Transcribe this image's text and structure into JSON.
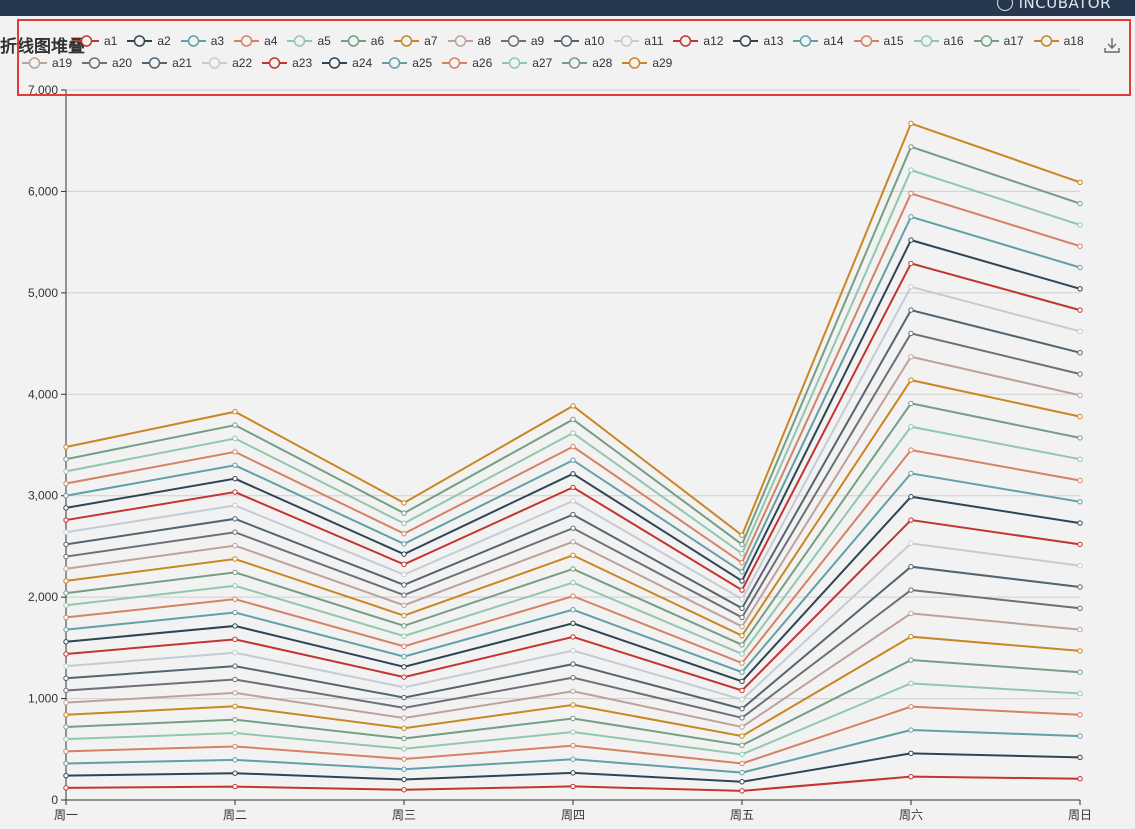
{
  "header": {
    "brand": "INCUBATOR"
  },
  "chart_data": {
    "type": "line",
    "title": "折线图堆叠",
    "stacked": true,
    "categories": [
      "周一",
      "周二",
      "周三",
      "周四",
      "周五",
      "周六",
      "周日"
    ],
    "ylim": [
      0,
      7000
    ],
    "yticks": [
      "0",
      "1,000",
      "2,000",
      "3,000",
      "4,000",
      "5,000",
      "6,000",
      "7,000"
    ],
    "legend_position": "top",
    "colors": [
      "#c23531",
      "#2f4554",
      "#61a0a8",
      "#d48265",
      "#91c7ae",
      "#749f83",
      "#ca8622",
      "#bda29a",
      "#6e7074",
      "#546570",
      "#c4ccd3"
    ],
    "series": [
      {
        "name": "a1",
        "values": [
          120,
          132,
          101,
          134,
          90,
          230,
          210
        ]
      },
      {
        "name": "a2",
        "values": [
          120,
          132,
          101,
          134,
          90,
          230,
          210
        ]
      },
      {
        "name": "a3",
        "values": [
          120,
          132,
          101,
          134,
          90,
          230,
          210
        ]
      },
      {
        "name": "a4",
        "values": [
          120,
          132,
          101,
          134,
          90,
          230,
          210
        ]
      },
      {
        "name": "a5",
        "values": [
          120,
          132,
          101,
          134,
          90,
          230,
          210
        ]
      },
      {
        "name": "a6",
        "values": [
          120,
          132,
          101,
          134,
          90,
          230,
          210
        ]
      },
      {
        "name": "a7",
        "values": [
          120,
          132,
          101,
          134,
          90,
          230,
          210
        ]
      },
      {
        "name": "a8",
        "values": [
          120,
          132,
          101,
          134,
          90,
          230,
          210
        ]
      },
      {
        "name": "a9",
        "values": [
          120,
          132,
          101,
          134,
          90,
          230,
          210
        ]
      },
      {
        "name": "a10",
        "values": [
          120,
          132,
          101,
          134,
          90,
          230,
          210
        ]
      },
      {
        "name": "a11",
        "values": [
          120,
          132,
          101,
          134,
          90,
          230,
          210
        ]
      },
      {
        "name": "a12",
        "values": [
          120,
          132,
          101,
          134,
          90,
          230,
          210
        ]
      },
      {
        "name": "a13",
        "values": [
          120,
          132,
          101,
          134,
          90,
          230,
          210
        ]
      },
      {
        "name": "a14",
        "values": [
          120,
          132,
          101,
          134,
          90,
          230,
          210
        ]
      },
      {
        "name": "a15",
        "values": [
          120,
          132,
          101,
          134,
          90,
          230,
          210
        ]
      },
      {
        "name": "a16",
        "values": [
          120,
          132,
          101,
          134,
          90,
          230,
          210
        ]
      },
      {
        "name": "a17",
        "values": [
          120,
          132,
          101,
          134,
          90,
          230,
          210
        ]
      },
      {
        "name": "a18",
        "values": [
          120,
          132,
          101,
          134,
          90,
          230,
          210
        ]
      },
      {
        "name": "a19",
        "values": [
          120,
          132,
          101,
          134,
          90,
          230,
          210
        ]
      },
      {
        "name": "a20",
        "values": [
          120,
          132,
          101,
          134,
          90,
          230,
          210
        ]
      },
      {
        "name": "a21",
        "values": [
          120,
          132,
          101,
          134,
          90,
          230,
          210
        ]
      },
      {
        "name": "a22",
        "values": [
          120,
          132,
          101,
          134,
          90,
          230,
          210
        ]
      },
      {
        "name": "a23",
        "values": [
          120,
          132,
          101,
          134,
          90,
          230,
          210
        ]
      },
      {
        "name": "a24",
        "values": [
          120,
          132,
          101,
          134,
          90,
          230,
          210
        ]
      },
      {
        "name": "a25",
        "values": [
          120,
          132,
          101,
          134,
          90,
          230,
          210
        ]
      },
      {
        "name": "a26",
        "values": [
          120,
          132,
          101,
          134,
          90,
          230,
          210
        ]
      },
      {
        "name": "a27",
        "values": [
          120,
          132,
          101,
          134,
          90,
          230,
          210
        ]
      },
      {
        "name": "a28",
        "values": [
          120,
          132,
          101,
          134,
          90,
          230,
          210
        ]
      },
      {
        "name": "a29",
        "values": [
          120,
          132,
          101,
          134,
          90,
          230,
          210
        ]
      }
    ]
  }
}
